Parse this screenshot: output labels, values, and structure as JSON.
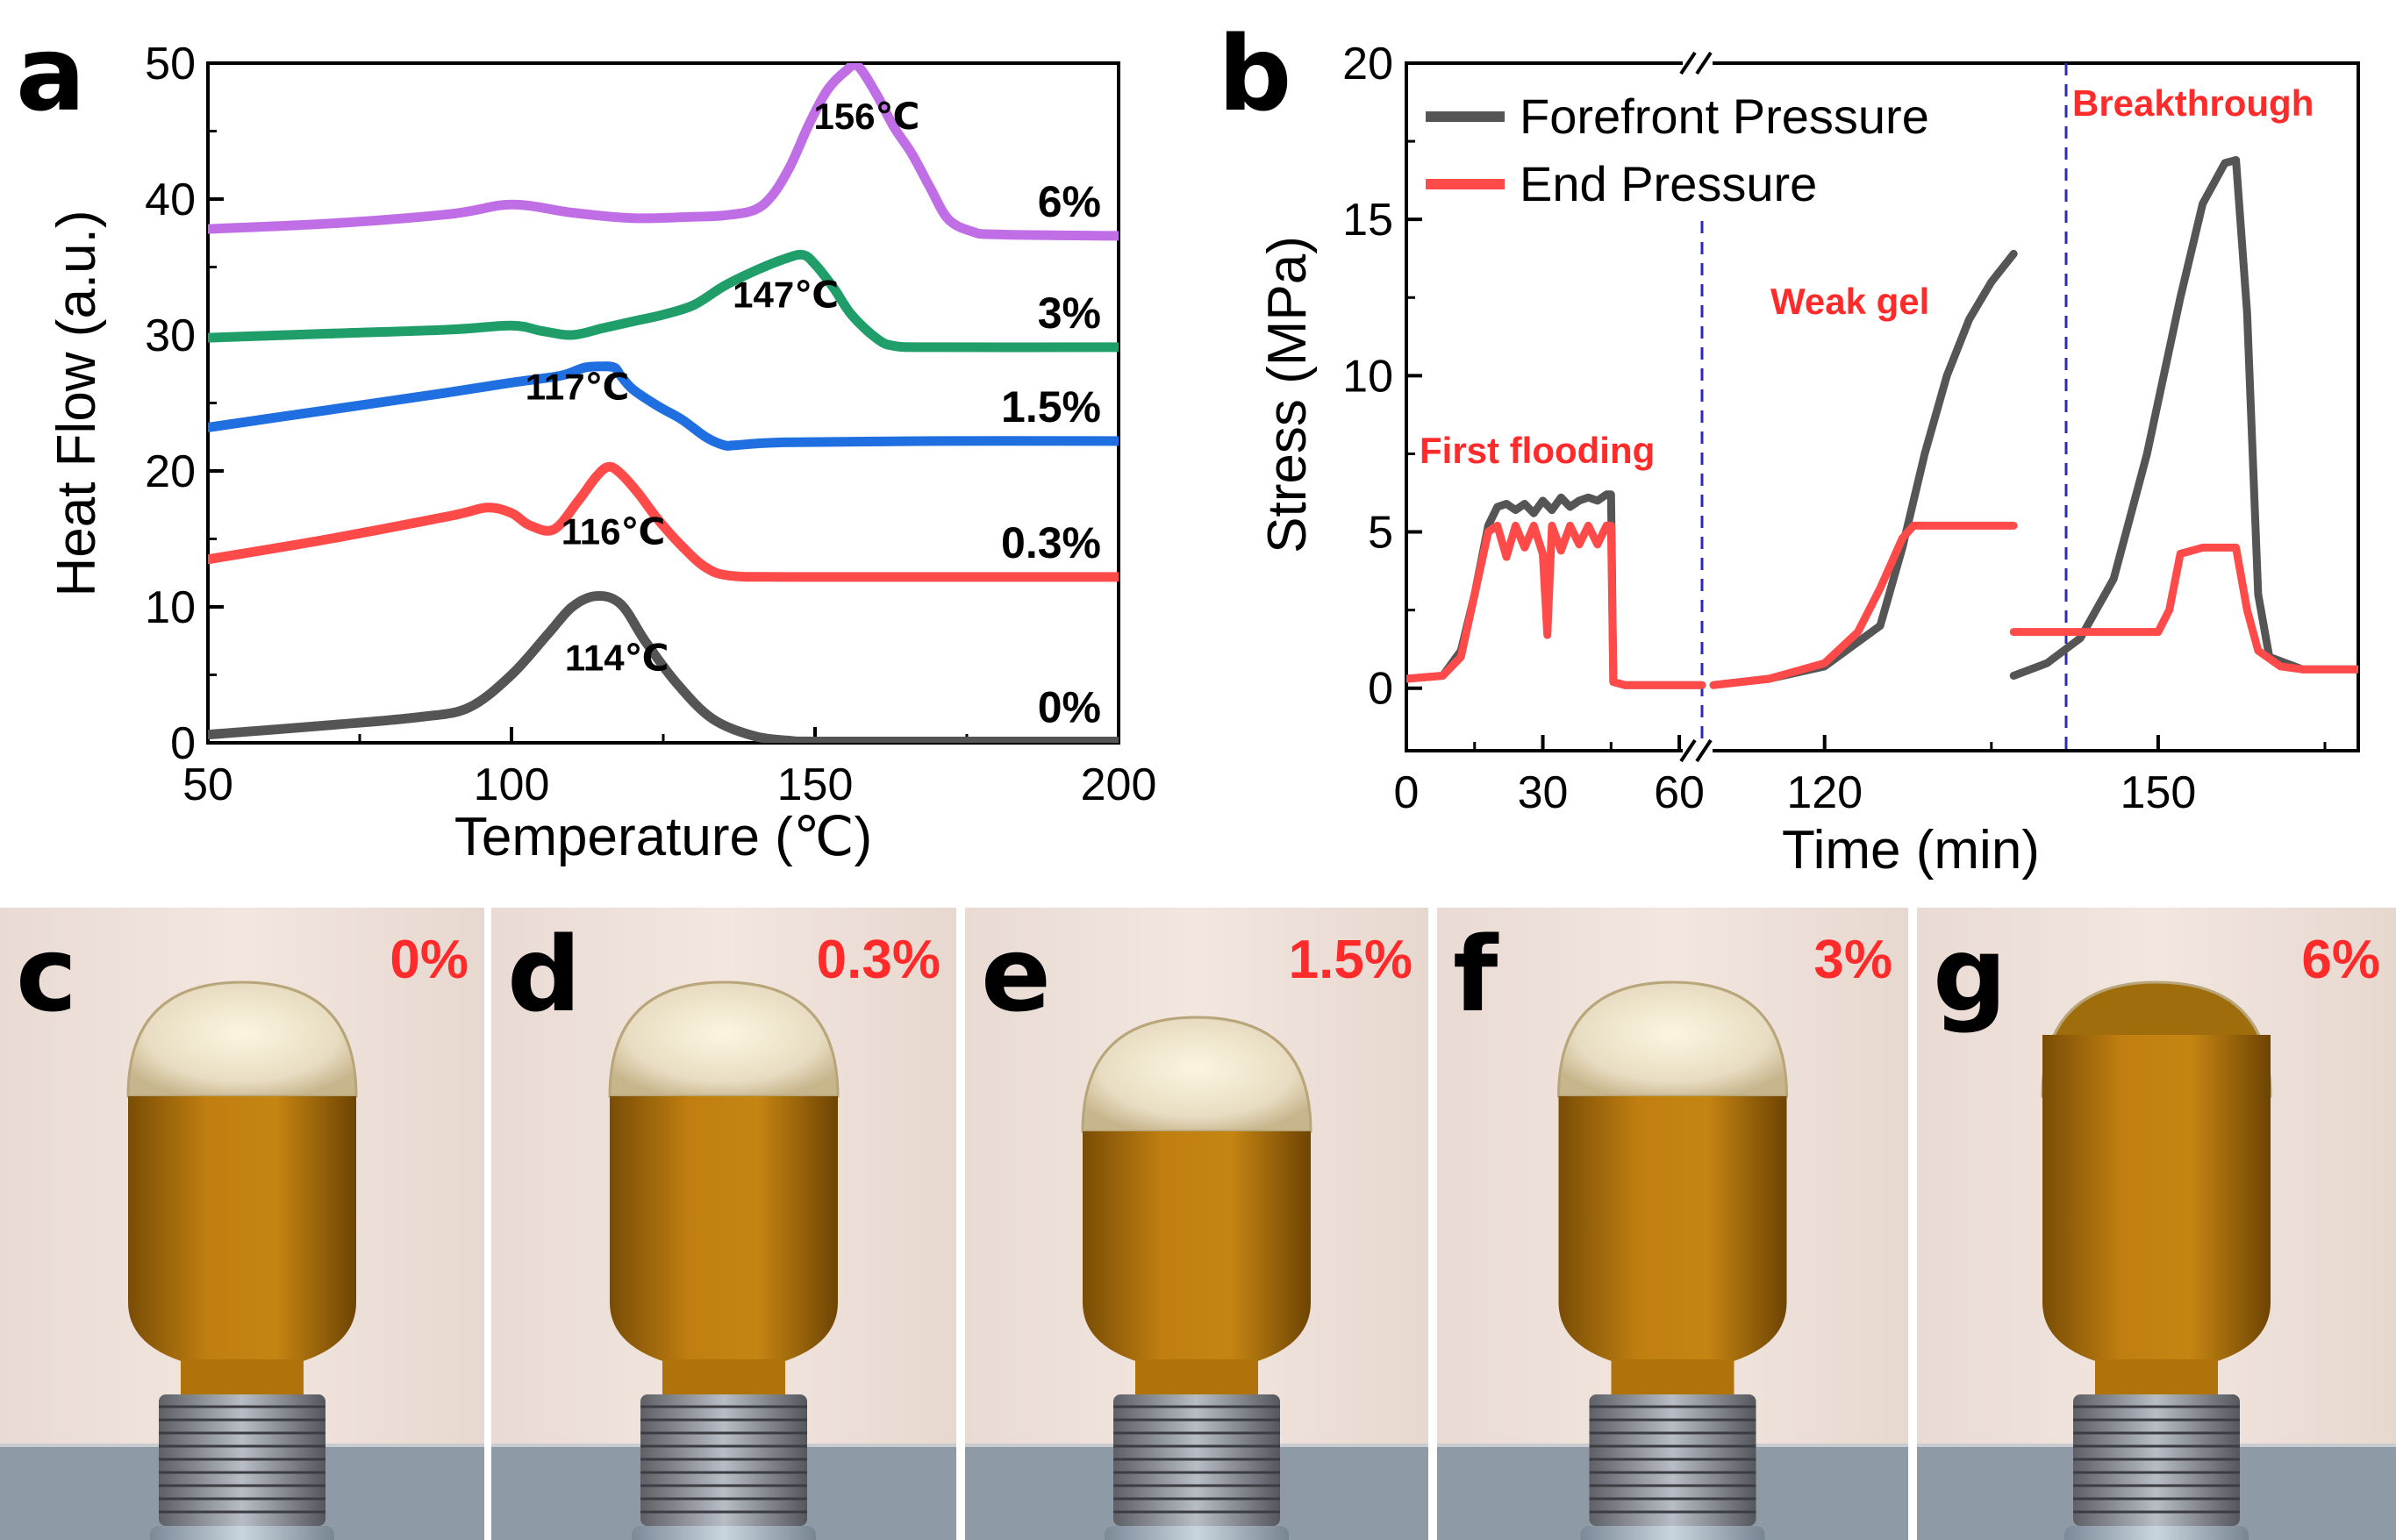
{
  "panel_labels": [
    "a",
    "b",
    "c",
    "d",
    "e",
    "f",
    "g"
  ],
  "chart_data": [
    {
      "type": "line",
      "panel": "a",
      "title": "",
      "xlabel": "Temperature (℃)",
      "ylabel": "Heat Flow (a.u.)",
      "xlim": [
        50,
        200
      ],
      "ylim": [
        0,
        50
      ],
      "xticks": [
        50,
        100,
        150,
        200
      ],
      "yticks": [
        0,
        10,
        20,
        30,
        40,
        50
      ],
      "series": [
        {
          "name": "0%",
          "color": "#555555",
          "peak_label": "114℃",
          "x": [
            50,
            70,
            85,
            93,
            100,
            106,
            110,
            114,
            118,
            122,
            127,
            133,
            140,
            146,
            150,
            170,
            200
          ],
          "y": [
            0.6,
            1.3,
            1.9,
            2.6,
            5.0,
            8.0,
            10.0,
            10.8,
            10.2,
            7.5,
            4.5,
            1.8,
            0.5,
            0.15,
            0.1,
            0.1,
            0.1
          ]
        },
        {
          "name": "0.3%",
          "color": "#ff4a4a",
          "peak_label": "116℃",
          "x": [
            50,
            70,
            90,
            96,
            100,
            103,
            107,
            111,
            114,
            116,
            118,
            121,
            124,
            128,
            132,
            136,
            145,
            170,
            200
          ],
          "y": [
            13.5,
            15.0,
            16.7,
            17.3,
            16.9,
            16.0,
            15.7,
            17.8,
            19.6,
            20.3,
            19.8,
            18.3,
            16.5,
            14.5,
            12.9,
            12.3,
            12.2,
            12.2,
            12.2
          ]
        },
        {
          "name": "1.5%",
          "color": "#1f6fe0",
          "peak_label": "117℃",
          "x": [
            50,
            70,
            90,
            100,
            108,
            112,
            115,
            117,
            118,
            120,
            124,
            128,
            132,
            135,
            137,
            145,
            170,
            200
          ],
          "y": [
            23.2,
            24.5,
            25.8,
            26.5,
            27.0,
            27.6,
            27.7,
            27.6,
            27.0,
            26.0,
            24.8,
            23.8,
            22.5,
            21.9,
            21.9,
            22.1,
            22.2,
            22.2
          ]
        },
        {
          "name": "3%",
          "color": "#1f9e6a",
          "peak_label": "147℃",
          "x": [
            50,
            70,
            90,
            100,
            105,
            110,
            115,
            120,
            125,
            130,
            135,
            140,
            145,
            148,
            150,
            153,
            156,
            160,
            163,
            170,
            200
          ],
          "y": [
            29.8,
            30.1,
            30.4,
            30.7,
            30.3,
            30.0,
            30.5,
            31.0,
            31.5,
            32.2,
            33.6,
            34.7,
            35.6,
            35.9,
            35.2,
            33.5,
            31.5,
            29.8,
            29.2,
            29.1,
            29.1
          ]
        },
        {
          "name": "6%",
          "color": "#c06ee6",
          "peak_label": "156℃",
          "x": [
            50,
            70,
            90,
            100,
            110,
            120,
            130,
            135,
            140,
            143,
            146,
            149,
            152,
            155,
            157,
            160,
            163,
            166,
            169,
            172,
            176,
            180,
            200
          ],
          "y": [
            37.8,
            38.2,
            38.9,
            39.6,
            39.0,
            38.6,
            38.7,
            38.8,
            39.2,
            40.3,
            42.5,
            45.5,
            48.0,
            49.4,
            49.8,
            47.8,
            45.3,
            43.3,
            40.8,
            38.5,
            37.6,
            37.4,
            37.3
          ]
        }
      ]
    },
    {
      "type": "line",
      "panel": "b",
      "title": "",
      "xlabel": "Time (min)",
      "ylabel": "Stress (MPa)",
      "x_axis_break": "between 60 and 120",
      "xticks": [
        "0",
        "30",
        "60",
        "120",
        "150"
      ],
      "ylim": [
        -2,
        20
      ],
      "yticks": [
        0,
        5,
        10,
        15,
        20
      ],
      "legend": [
        "Forefront Pressure",
        "End Pressure"
      ],
      "legend_position": "top-left",
      "annotations": [
        "First flooding",
        "Weak gel",
        "Breakthrough"
      ],
      "series": [
        {
          "name": "Forefront Pressure",
          "color": "#555555",
          "segments": [
            {
              "stage": "First flooding",
              "x": [
                0,
                8,
                12,
                15,
                18,
                20,
                22,
                24,
                26,
                28,
                30,
                32,
                34,
                36,
                38,
                40,
                42,
                44,
                45,
                45.5,
                48,
                55,
                62,
                65
              ],
              "y": [
                0.3,
                0.4,
                1.2,
                3.0,
                5.2,
                5.8,
                5.9,
                5.7,
                5.9,
                5.6,
                6.0,
                5.7,
                6.1,
                5.8,
                6.0,
                6.1,
                6.0,
                6.2,
                6.2,
                0.2,
                0.1,
                0.1,
                0.1,
                0.1
              ]
            },
            {
              "stage": "Weak gel",
              "x": [
                110,
                115,
                120,
                125,
                127,
                129,
                131,
                133,
                135,
                137
              ],
              "y": [
                0.1,
                0.3,
                0.7,
                2.0,
                4.5,
                7.5,
                10.0,
                11.8,
                13.0,
                13.9
              ]
            },
            {
              "stage": "Breakthrough",
              "x": [
                137,
                140,
                143,
                146,
                149,
                152,
                154,
                156,
                157,
                158,
                159,
                160,
                163,
                168
              ],
              "y": [
                0.4,
                0.8,
                1.6,
                3.5,
                7.5,
                12.5,
                15.5,
                16.8,
                16.9,
                12.0,
                3.0,
                1.0,
                0.6,
                0.6
              ]
            }
          ]
        },
        {
          "name": "End Pressure",
          "color": "#ff4a4a",
          "segments": [
            {
              "stage": "First flooding",
              "x": [
                0,
                8,
                12,
                15,
                18,
                20,
                22,
                24,
                26,
                28,
                30,
                31,
                32,
                34,
                36,
                38,
                40,
                42,
                44,
                45,
                45.5,
                48,
                55,
                62,
                65
              ],
              "y": [
                0.3,
                0.4,
                1.0,
                3.0,
                5.0,
                5.2,
                4.2,
                5.2,
                4.5,
                5.2,
                4.3,
                1.7,
                5.2,
                4.4,
                5.2,
                4.6,
                5.2,
                4.6,
                5.2,
                5.2,
                0.2,
                0.1,
                0.1,
                0.1,
                0.1
              ]
            },
            {
              "stage": "Weak gel",
              "x": [
                110,
                115,
                120,
                123,
                125,
                127,
                128,
                130,
                133,
                137
              ],
              "y": [
                0.1,
                0.3,
                0.8,
                1.8,
                3.2,
                4.8,
                5.2,
                5.2,
                5.2,
                5.2
              ]
            },
            {
              "stage": "Breakthrough",
              "x": [
                137,
                140,
                145,
                150,
                151,
                152,
                154,
                156,
                157,
                158,
                159,
                161,
                163,
                168
              ],
              "y": [
                1.8,
                1.8,
                1.8,
                1.8,
                2.5,
                4.3,
                4.5,
                4.5,
                4.5,
                2.5,
                1.2,
                0.7,
                0.6,
                0.6
              ]
            }
          ]
        }
      ]
    }
  ],
  "photos": [
    {
      "letter": "c",
      "label": "0%"
    },
    {
      "letter": "d",
      "label": "0.3%"
    },
    {
      "letter": "e",
      "label": "1.5%"
    },
    {
      "letter": "f",
      "label": "3%"
    },
    {
      "letter": "g",
      "label": "6%"
    }
  ],
  "colors": {
    "annotation_red": "#ff2a2a",
    "axis": "#000000",
    "dashed_line": "#2b2bb8"
  }
}
